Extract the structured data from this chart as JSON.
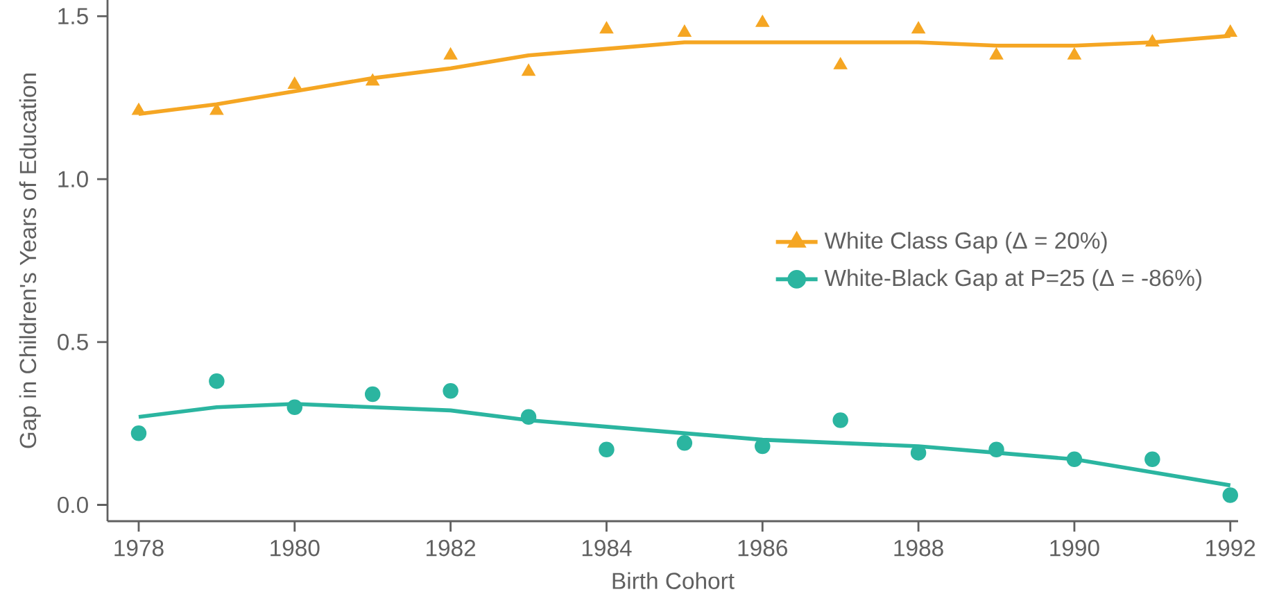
{
  "chart_data": {
    "type": "scatter",
    "xlabel": "Birth Cohort",
    "ylabel": "Gap in Children's Years of Education",
    "x": [
      1978,
      1979,
      1980,
      1981,
      1982,
      1983,
      1984,
      1985,
      1986,
      1987,
      1988,
      1989,
      1990,
      1991,
      1992
    ],
    "xlim": [
      1977.6,
      1992.1
    ],
    "xticks": [
      1978,
      1980,
      1982,
      1984,
      1986,
      1988,
      1990,
      1992
    ],
    "ylim": [
      -0.05,
      1.55
    ],
    "yticks": [
      {
        "value": 0,
        "label": "0.0"
      },
      {
        "value": 0.5,
        "label": "0.5"
      },
      {
        "value": 1,
        "label": "1.0"
      },
      {
        "value": 1.5,
        "label": "1.5"
      }
    ],
    "legend": "right",
    "grid": false,
    "series": [
      {
        "name": "White Class Gap  (Δ = 20%)",
        "marker": "triangle",
        "color": "#f5a623",
        "values": [
          1.21,
          1.21,
          1.29,
          1.3,
          1.38,
          1.33,
          1.46,
          1.45,
          1.48,
          1.35,
          1.46,
          1.38,
          1.38,
          1.42,
          1.45
        ]
      },
      {
        "name": "White-Black Gap at P=25  (Δ = -86%)",
        "marker": "circle",
        "color": "#2bb5a0",
        "values": [
          0.22,
          0.38,
          0.3,
          0.34,
          0.35,
          0.27,
          0.17,
          0.19,
          0.18,
          0.26,
          0.16,
          0.17,
          0.14,
          0.14,
          0.03
        ]
      },
      {
        "type": "line",
        "marker": "none",
        "color": "#f5a623",
        "values": [
          1.2,
          1.23,
          1.27,
          1.31,
          1.34,
          1.38,
          1.4,
          1.42,
          1.42,
          1.42,
          1.42,
          1.41,
          1.41,
          1.42,
          1.44
        ]
      },
      {
        "type": "line",
        "marker": "none",
        "color": "#2bb5a0",
        "values": [
          0.27,
          0.3,
          0.31,
          0.3,
          0.29,
          0.26,
          0.24,
          0.22,
          0.2,
          0.19,
          0.18,
          0.16,
          0.14,
          0.1,
          0.06
        ]
      }
    ]
  }
}
